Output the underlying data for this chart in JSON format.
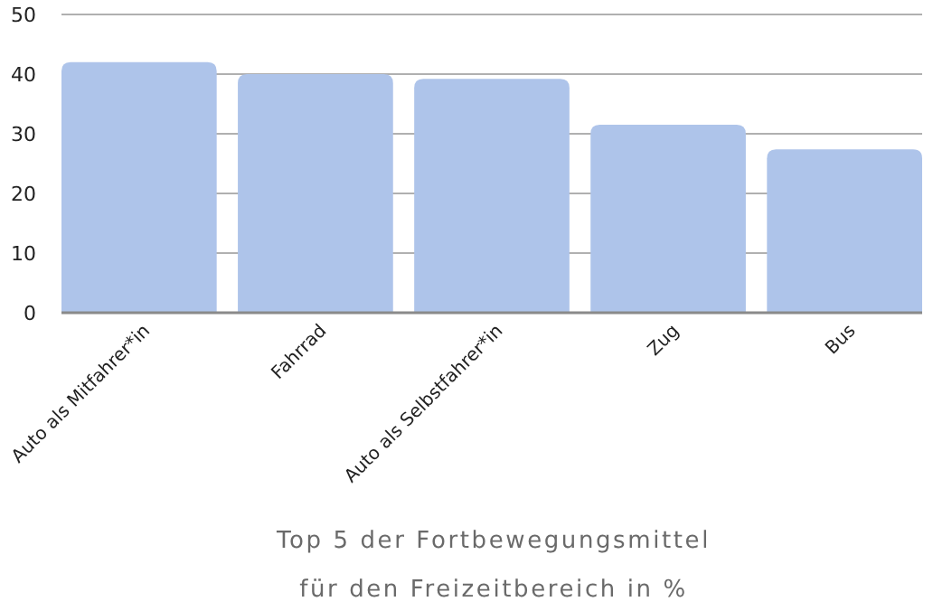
{
  "chart_data": {
    "type": "bar",
    "title": "Top 5 der Fortbewegungsmittel für den Freizeitbereich in %",
    "categories": [
      "Auto als Mitfahrer*in",
      "Fahrrad",
      "Auto als Selbstfahrer*in",
      "Zug",
      "Bus"
    ],
    "values": [
      42,
      40,
      39.2,
      31.5,
      27.4
    ],
    "color": "#aec4ea",
    "ylim": [
      0,
      50
    ],
    "yticks": [
      0,
      10,
      20,
      30,
      40,
      50
    ],
    "grid": "y"
  }
}
